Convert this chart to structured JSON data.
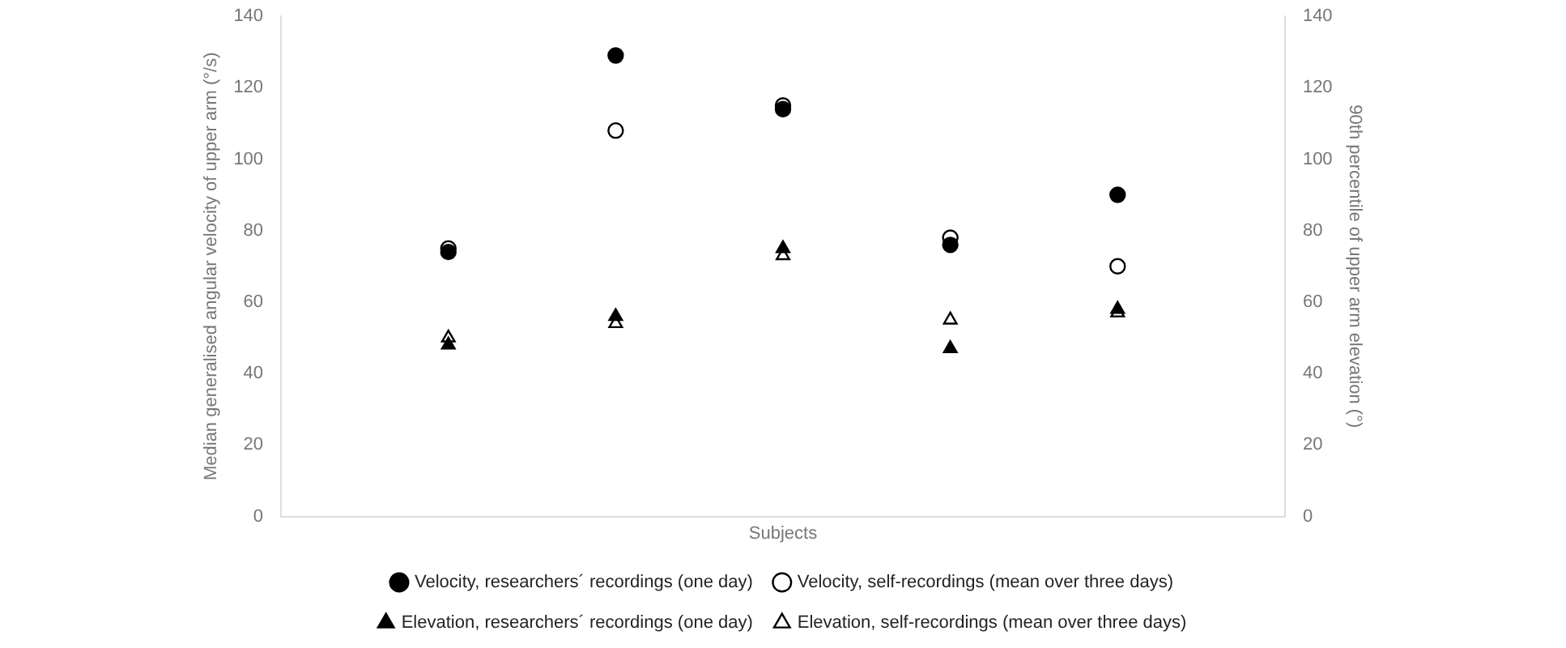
{
  "chart_data": {
    "type": "scatter",
    "xlabel": "Subjects",
    "ylabel": "Median generalised angular velocity of upper arm (°/s)",
    "y2label": "90th percentile of upper arm elevation (°)",
    "categories": [
      null,
      null,
      null,
      null,
      null
    ],
    "series": [
      {
        "name": "Velocity, researchers´ recordings (one day)",
        "color": "#000000",
        "marker": "circle",
        "values": [
          74,
          129,
          114,
          76,
          90
        ]
      },
      {
        "name": "Velocity, self-recordings (mean over three days)",
        "color": "#ffffff",
        "marker": "circle",
        "values": [
          75,
          108,
          115,
          78,
          70
        ]
      },
      {
        "name": "Elevation, researchers´ recordings (one day)",
        "color": "#000000",
        "marker": "triangle",
        "axis": "y2",
        "values": [
          48,
          56,
          75,
          47,
          58
        ]
      },
      {
        "name": "Elevation, self-recordings (mean over three days)",
        "color": "#ffffff",
        "marker": "triangle",
        "axis": "y2",
        "values": [
          50,
          54,
          73,
          55,
          57
        ]
      }
    ],
    "ylim": [
      0,
      140
    ],
    "yticks": [
      0,
      20,
      40,
      60,
      80,
      100,
      120,
      140
    ],
    "y2lim": [
      0,
      140
    ],
    "y2ticks": [
      0,
      20,
      40,
      60,
      80,
      100,
      120,
      140
    ],
    "grid": false,
    "legend": "bottom"
  }
}
